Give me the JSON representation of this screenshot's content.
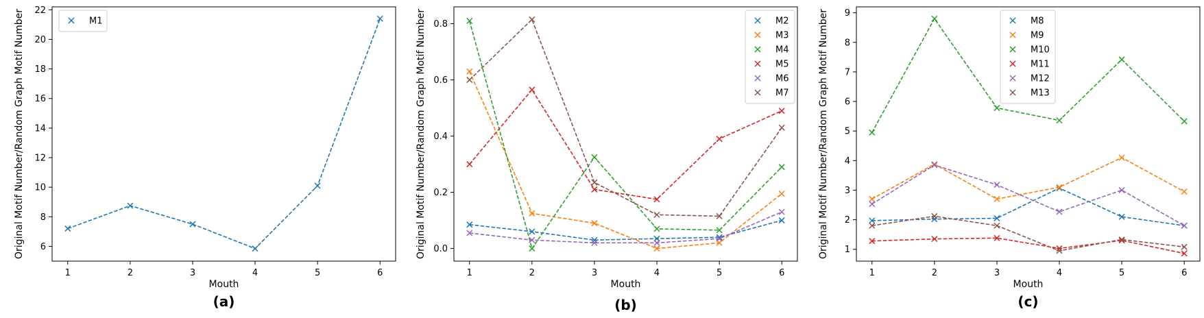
{
  "chart_data": [
    {
      "type": "line",
      "panel_label": "(a)",
      "xlabel": "Mouth",
      "ylabel": "Original Motif Number/Random Graph Motif Number",
      "x": [
        1,
        2,
        3,
        4,
        5,
        6
      ],
      "xlim": [
        0.75,
        6.25
      ],
      "ylim": [
        5.0,
        22.2
      ],
      "yticks": [
        6,
        8,
        10,
        12,
        14,
        16,
        18,
        20,
        22
      ],
      "grid": false,
      "legend_position": "upper-left",
      "series": [
        {
          "name": "M1",
          "color": "#1f77b4",
          "values": [
            7.2,
            8.75,
            7.5,
            5.85,
            10.1,
            21.4
          ]
        }
      ]
    },
    {
      "type": "line",
      "panel_label": "(b)",
      "xlabel": "Mouth",
      "ylabel": "Original Motif Number/Random Graph Motif Number",
      "x": [
        1,
        2,
        3,
        4,
        5,
        6
      ],
      "xlim": [
        0.75,
        6.25
      ],
      "ylim": [
        -0.045,
        0.86
      ],
      "yticks": [
        0.0,
        0.2,
        0.4,
        0.6,
        0.8
      ],
      "grid": false,
      "legend_position": "upper-right",
      "series": [
        {
          "name": "M2",
          "color": "#1f77b4",
          "values": [
            0.085,
            0.06,
            0.03,
            0.035,
            0.04,
            0.1
          ]
        },
        {
          "name": "M3",
          "color": "#ff7f0e",
          "values": [
            0.63,
            0.125,
            0.09,
            0.0,
            0.02,
            0.195
          ]
        },
        {
          "name": "M4",
          "color": "#2ca02c",
          "values": [
            0.81,
            0.0,
            0.325,
            0.07,
            0.065,
            0.29
          ]
        },
        {
          "name": "M5",
          "color": "#d62728",
          "values": [
            0.3,
            0.565,
            0.21,
            0.175,
            0.39,
            0.49
          ]
        },
        {
          "name": "M6",
          "color": "#9467bd",
          "values": [
            0.055,
            0.03,
            0.02,
            0.02,
            0.035,
            0.13
          ]
        },
        {
          "name": "M7",
          "color": "#8c564b",
          "values": [
            0.6,
            0.815,
            0.235,
            0.12,
            0.115,
            0.43
          ]
        }
      ]
    },
    {
      "type": "line",
      "panel_label": "(c)",
      "xlabel": "Mouth",
      "ylabel": "Original Motif Number/Random Graph Motif Number",
      "x": [
        1,
        2,
        3,
        4,
        5,
        6
      ],
      "xlim": [
        0.75,
        6.25
      ],
      "ylim": [
        0.6,
        9.2
      ],
      "yticks": [
        1,
        2,
        3,
        4,
        5,
        6,
        7,
        8,
        9
      ],
      "grid": false,
      "legend_position": "upper-center",
      "series": [
        {
          "name": "M8",
          "color": "#1f77b4",
          "values": [
            1.97,
            2.02,
            2.05,
            3.07,
            2.1,
            1.8
          ]
        },
        {
          "name": "M9",
          "color": "#ff7f0e",
          "values": [
            2.7,
            3.88,
            2.7,
            3.1,
            4.1,
            2.95
          ]
        },
        {
          "name": "M10",
          "color": "#2ca02c",
          "values": [
            4.95,
            8.8,
            5.78,
            5.36,
            7.42,
            5.33
          ]
        },
        {
          "name": "M11",
          "color": "#d62728",
          "values": [
            1.28,
            1.35,
            1.38,
            1.03,
            1.3,
            0.86
          ]
        },
        {
          "name": "M12",
          "color": "#9467bd",
          "values": [
            2.53,
            3.85,
            3.18,
            2.27,
            3.0,
            1.8
          ]
        },
        {
          "name": "M13",
          "color": "#8c564b",
          "values": [
            1.8,
            2.12,
            1.8,
            0.95,
            1.33,
            1.08
          ]
        }
      ]
    }
  ]
}
